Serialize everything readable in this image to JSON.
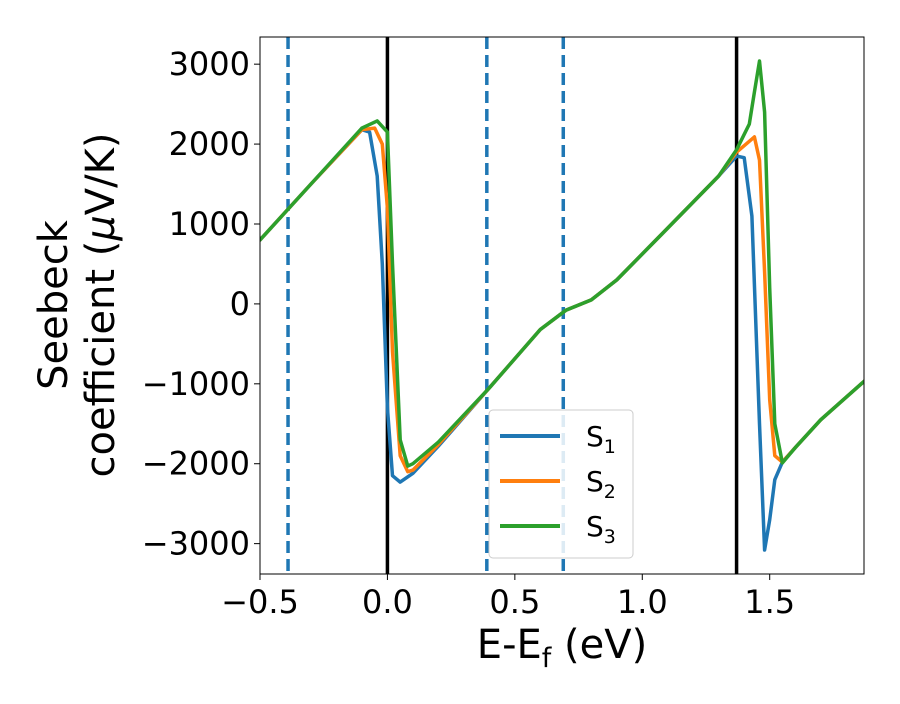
{
  "chart_data": {
    "type": "line",
    "xlabel": "E-E",
    "xlabel_sub": "f",
    "xlabel_unit": " (eV)",
    "ylabel_line1": "Seebeck",
    "ylabel_line2_prefix": "coefficient  (",
    "ylabel_mu": "μ",
    "ylabel_line2_suffix": "V/K)",
    "xlim": [
      -0.5,
      1.87
    ],
    "ylim": [
      -3380,
      3340
    ],
    "xticks": [
      -0.5,
      0.0,
      0.5,
      1.0,
      1.5
    ],
    "xtick_labels": [
      "−0.5",
      "0.0",
      "0.5",
      "1.0",
      "1.5"
    ],
    "yticks": [
      -3000,
      -2000,
      -1000,
      0,
      1000,
      2000,
      3000
    ],
    "ytick_labels": [
      "−3000",
      "−2000",
      "−1000",
      "0",
      "1000",
      "2000",
      "3000"
    ],
    "grid": false,
    "legend_position": "lower-center",
    "vlines_solid": [
      0.0,
      1.37
    ],
    "vlines_dashed": [
      -0.39,
      0.39,
      0.69
    ],
    "vline_solid_color": "#000000",
    "vline_dashed_color": "#1f77b4",
    "series": [
      {
        "name": "S",
        "sub": "1",
        "color": "#1f77b4",
        "x": [
          -0.5,
          -0.3,
          -0.1,
          -0.07,
          -0.04,
          -0.02,
          0.0,
          0.02,
          0.05,
          0.1,
          0.2,
          0.4,
          0.6,
          0.7,
          0.8,
          0.9,
          1.1,
          1.3,
          1.37,
          1.4,
          1.43,
          1.46,
          1.48,
          1.5,
          1.52,
          1.55,
          1.6,
          1.7,
          1.87
        ],
        "y": [
          800,
          1500,
          2180,
          2150,
          1600,
          500,
          -1300,
          -2150,
          -2230,
          -2120,
          -1780,
          -1050,
          -320,
          -80,
          50,
          300,
          950,
          1600,
          1850,
          1830,
          1100,
          -1500,
          -3080,
          -2700,
          -2200,
          -1980,
          -1800,
          -1450,
          -970
        ]
      },
      {
        "name": "S",
        "sub": "2",
        "color": "#ff7f0e",
        "x": [
          -0.5,
          -0.3,
          -0.1,
          -0.05,
          -0.02,
          0.0,
          0.02,
          0.05,
          0.08,
          0.1,
          0.2,
          0.4,
          0.6,
          0.7,
          0.8,
          0.9,
          1.1,
          1.3,
          1.37,
          1.4,
          1.44,
          1.46,
          1.48,
          1.5,
          1.52,
          1.55,
          1.6,
          1.7,
          1.87
        ],
        "y": [
          800,
          1500,
          2180,
          2200,
          2000,
          1200,
          -600,
          -1900,
          -2100,
          -2080,
          -1760,
          -1050,
          -320,
          -80,
          50,
          300,
          950,
          1600,
          1900,
          1980,
          2090,
          1800,
          400,
          -1200,
          -1900,
          -1980,
          -1800,
          -1450,
          -970
        ]
      },
      {
        "name": "S",
        "sub": "3",
        "color": "#2ca02c",
        "x": [
          -0.5,
          -0.3,
          -0.1,
          -0.04,
          0.0,
          0.02,
          0.05,
          0.08,
          0.1,
          0.2,
          0.4,
          0.6,
          0.7,
          0.8,
          0.9,
          1.1,
          1.3,
          1.37,
          1.42,
          1.44,
          1.46,
          1.48,
          1.5,
          1.52,
          1.55,
          1.6,
          1.7,
          1.87
        ],
        "y": [
          800,
          1500,
          2200,
          2290,
          2150,
          500,
          -1700,
          -2030,
          -2000,
          -1730,
          -1050,
          -320,
          -80,
          50,
          300,
          950,
          1600,
          1930,
          2250,
          2650,
          3040,
          2400,
          200,
          -1500,
          -1990,
          -1800,
          -1450,
          -970
        ]
      }
    ]
  }
}
